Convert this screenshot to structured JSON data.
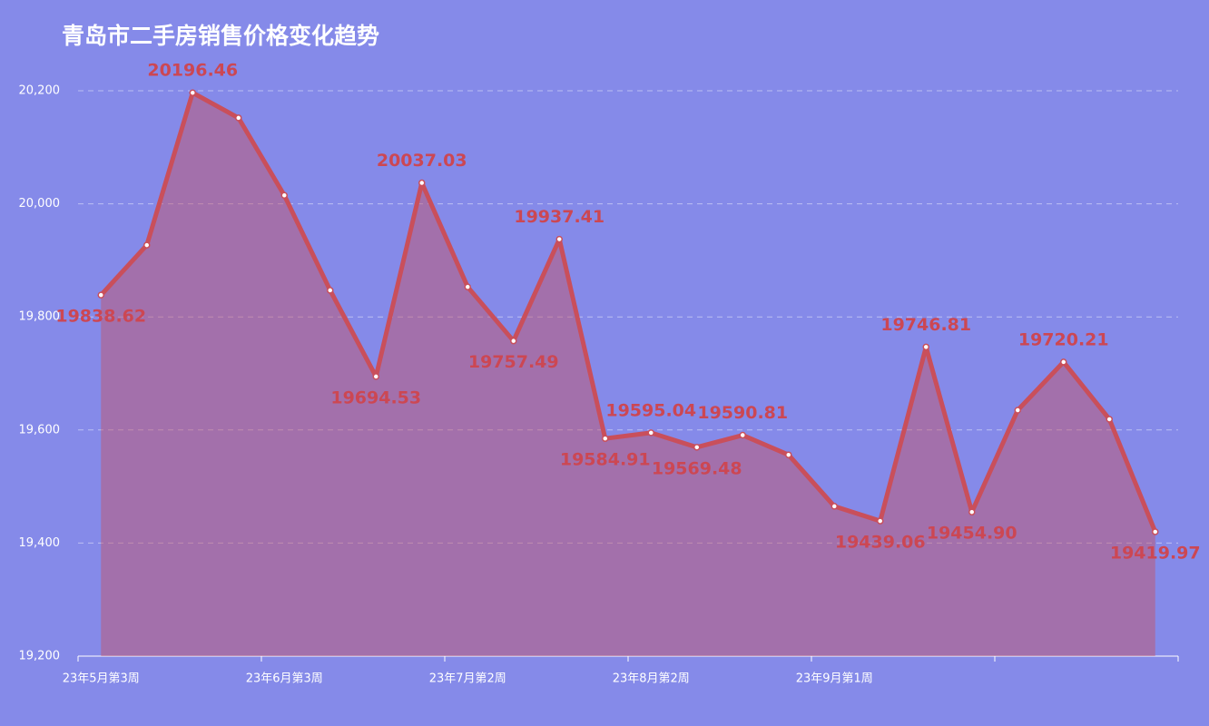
{
  "chart_data": {
    "type": "line",
    "title": "青岛市二手房销售价格变化趋势",
    "categories": [
      "23年5月第3周",
      null,
      null,
      null,
      "23年6月第3周",
      null,
      null,
      null,
      "23年7月第2周",
      null,
      null,
      null,
      "23年8月第2周",
      null,
      null,
      null,
      "23年9月第1周",
      null,
      null,
      null,
      null,
      null,
      null,
      null
    ],
    "series": [
      {
        "name": null,
        "color": "#c94f5b",
        "values": [
          19838.62,
          19927,
          20196.46,
          20152,
          20015,
          19847,
          19694.53,
          20037.03,
          19853,
          19757.49,
          19937.41,
          19584.91,
          19595.04,
          19569.48,
          19590.81,
          19556,
          19465,
          19439.06,
          19746.81,
          19454.9,
          19635,
          19720.21,
          19619,
          19419.97
        ],
        "value_labels": [
          "19838.62",
          null,
          "20196.46",
          null,
          null,
          null,
          "19694.53",
          "20037.03",
          null,
          "19757.49",
          "19937.41",
          "19584.91",
          "19595.04",
          "19569.48",
          "19590.81",
          null,
          null,
          "19439.06",
          "19746.81",
          "19454.90",
          null,
          "19720.21",
          null,
          "19419.97"
        ]
      }
    ],
    "ylim": [
      19200,
      20200
    ],
    "yticks": [
      {
        "value": 19200,
        "label": "19,200"
      },
      {
        "value": 19400,
        "label": "19,400"
      },
      {
        "value": 19600,
        "label": "19,600"
      },
      {
        "value": 19800,
        "label": "19,800"
      },
      {
        "value": 20000,
        "label": "20,000"
      },
      {
        "value": 20200,
        "label": "20,200"
      }
    ],
    "grid": true
  }
}
